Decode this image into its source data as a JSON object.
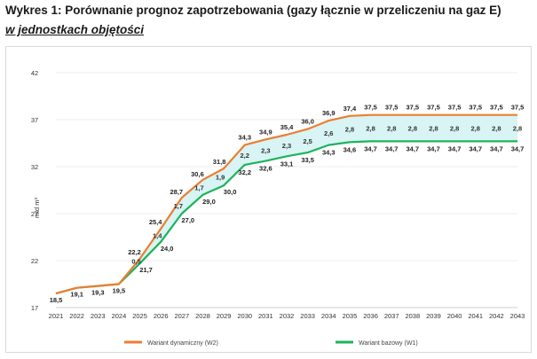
{
  "heading": "Wykres 1: Porównanie prognoz zapotrzebowania (gazy łącznie w przeliczeniu na gaz E)",
  "subheading": "w jednostkach objętości",
  "chart_data": {
    "type": "line",
    "x": [
      "2021",
      "2022",
      "2023",
      "2024",
      "2025",
      "2026",
      "2027",
      "2028",
      "2029",
      "2030",
      "2031",
      "2032",
      "2033",
      "2034",
      "2035",
      "2036",
      "2037",
      "2038",
      "2039",
      "2040",
      "2041",
      "2042",
      "2043"
    ],
    "ylim": [
      17,
      42
    ],
    "yticks": [
      17,
      22,
      27,
      32,
      37,
      42
    ],
    "ylabel": "mld m³",
    "series": [
      {
        "name": "Wariant dynamiczny (W2)",
        "color": "#ED7D31",
        "values": [
          18.5,
          19.1,
          19.3,
          19.5,
          22.2,
          25.4,
          28.7,
          30.6,
          31.8,
          34.3,
          34.9,
          35.4,
          36.0,
          36.9,
          37.4,
          37.5,
          37.5,
          37.5,
          37.5,
          37.5,
          37.5,
          37.5,
          37.5
        ],
        "labels": [
          "",
          "",
          "",
          "",
          "22,2",
          "25,4",
          "28,7",
          "30,6",
          "31,8",
          "34,3",
          "34,9",
          "35,4",
          "36,0",
          "36,9",
          "37,4",
          "37,5",
          "37,5",
          "37,5",
          "37,5",
          "37,5",
          "37,5",
          "37,5",
          "37,5"
        ]
      },
      {
        "name": "Wariant bazowy (W1)",
        "color": "#1DB35B",
        "values": [
          18.5,
          19.1,
          19.3,
          19.5,
          21.7,
          24.0,
          27.0,
          29.0,
          30.0,
          32.2,
          32.6,
          33.1,
          33.5,
          34.3,
          34.6,
          34.7,
          34.7,
          34.7,
          34.7,
          34.7,
          34.7,
          34.7,
          34.7
        ],
        "labels": [
          "18,5",
          "19,1",
          "19,3",
          "19,5",
          "21,7",
          "24,0",
          "27,0",
          "29,0",
          "30,0",
          "32,2",
          "32,6",
          "33,1",
          "33,5",
          "34,3",
          "34,6",
          "34,7",
          "34,7",
          "34,7",
          "34,7",
          "34,7",
          "34,7",
          "34,7",
          "34,7"
        ]
      }
    ],
    "differences": [
      "",
      "",
      "",
      "",
      "0,5",
      "1,4",
      "1,7",
      "1,7",
      "1,9",
      "2,2",
      "2,3",
      "2,3",
      "2,5",
      "2,6",
      "2,8",
      "2,8",
      "2,8",
      "2,8",
      "2,8",
      "2,8",
      "2,8",
      "2,8",
      "2,8"
    ],
    "band_color": "#D8F4F4",
    "grid": "horizontal",
    "legend_position": "bottom"
  }
}
